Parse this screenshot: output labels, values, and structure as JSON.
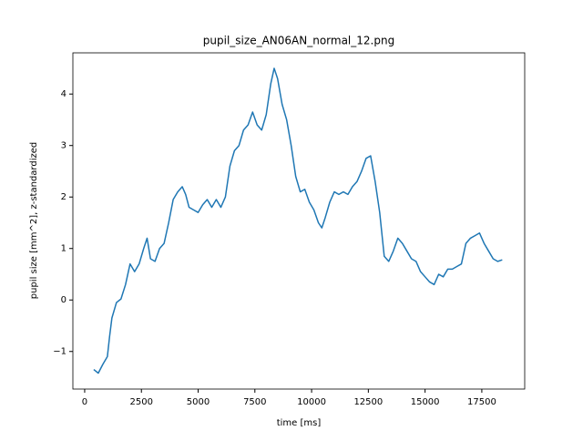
{
  "chart_data": {
    "type": "line",
    "title": "pupil_size_AN06AN_normal_12.png",
    "x_label": "time [ms]",
    "y_label": "pupil size [mm^2], z-standardized",
    "x": [
      400,
      600,
      800,
      1000,
      1100,
      1200,
      1400,
      1600,
      1800,
      2000,
      2200,
      2400,
      2600,
      2750,
      2900,
      3100,
      3300,
      3500,
      3700,
      3900,
      4100,
      4300,
      4450,
      4600,
      4800,
      5000,
      5200,
      5400,
      5600,
      5800,
      6000,
      6200,
      6400,
      6600,
      6800,
      7000,
      7200,
      7400,
      7600,
      7800,
      8000,
      8200,
      8350,
      8500,
      8700,
      8900,
      9100,
      9300,
      9500,
      9700,
      9900,
      10100,
      10300,
      10450,
      10600,
      10800,
      11000,
      11200,
      11400,
      11600,
      11800,
      12000,
      12200,
      12400,
      12600,
      12800,
      13000,
      13200,
      13400,
      13600,
      13800,
      14000,
      14200,
      14400,
      14600,
      14800,
      15000,
      15200,
      15400,
      15600,
      15800,
      16000,
      16200,
      16400,
      16600,
      16800,
      17000,
      17200,
      17400,
      17600,
      17800,
      18000,
      18200,
      18400
    ],
    "series": [
      {
        "name": "pupil size",
        "color": "#1f77b4",
        "values": [
          -1.35,
          -1.42,
          -1.25,
          -1.1,
          -0.7,
          -0.35,
          -0.05,
          0.02,
          0.3,
          0.7,
          0.55,
          0.7,
          1.0,
          1.2,
          0.8,
          0.75,
          1.0,
          1.1,
          1.5,
          1.95,
          2.1,
          2.2,
          2.05,
          1.8,
          1.75,
          1.7,
          1.85,
          1.95,
          1.8,
          1.95,
          1.8,
          2.0,
          2.6,
          2.9,
          3.0,
          3.3,
          3.4,
          3.65,
          3.4,
          3.3,
          3.6,
          4.2,
          4.5,
          4.3,
          3.8,
          3.5,
          3.0,
          2.4,
          2.1,
          2.15,
          1.9,
          1.75,
          1.5,
          1.4,
          1.6,
          1.9,
          2.1,
          2.05,
          2.1,
          2.05,
          2.2,
          2.3,
          2.5,
          2.75,
          2.8,
          2.3,
          1.7,
          0.85,
          0.75,
          0.95,
          1.2,
          1.1,
          0.95,
          0.8,
          0.75,
          0.55,
          0.45,
          0.35,
          0.3,
          0.5,
          0.45,
          0.6,
          0.6,
          0.65,
          0.7,
          1.1,
          1.2,
          1.25,
          1.3,
          1.1,
          0.95,
          0.8,
          0.75,
          0.78
        ]
      }
    ],
    "xlim": [
      -520,
      19390
    ],
    "ylim": [
      -1.73,
      4.8
    ],
    "xticks": [
      0,
      2500,
      5000,
      7500,
      10000,
      12500,
      15000,
      17500
    ],
    "yticks": [
      {
        "value": -1,
        "label": "−1"
      },
      0,
      1,
      2,
      3,
      4
    ]
  }
}
